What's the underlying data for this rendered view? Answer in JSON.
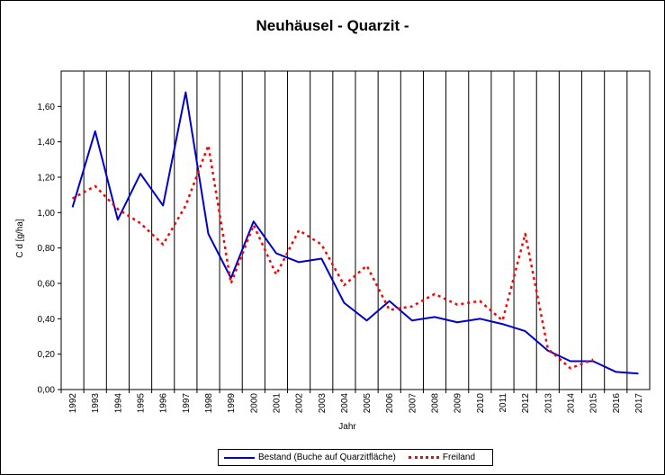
{
  "chart_data": {
    "type": "line",
    "title": "Neuhäusel - Quarzit -",
    "xlabel": "Jahr",
    "ylabel": "C d [g/ha]",
    "x": [
      "1992",
      "1993",
      "1994",
      "1995",
      "1996",
      "1997",
      "1998",
      "1999",
      "2000",
      "2001",
      "2002",
      "2003",
      "2004",
      "2005",
      "2006",
      "2007",
      "2008",
      "2009",
      "2010",
      "2011",
      "2012",
      "2013",
      "2014",
      "2015",
      "2016",
      "2017"
    ],
    "ylim": [
      0,
      1.8
    ],
    "yticks": [
      "0,00",
      "0,20",
      "0,40",
      "0,60",
      "0,80",
      "1,00",
      "1,20",
      "1,40",
      "1,60"
    ],
    "grid": "vertical",
    "legend_position": "bottom",
    "series": [
      {
        "name": "Bestand (Buche auf Quarzitfläche)",
        "color": "#0000cc",
        "style": "solid",
        "values": [
          1.03,
          1.46,
          0.96,
          1.22,
          1.04,
          1.68,
          0.88,
          0.63,
          0.95,
          0.77,
          0.72,
          0.74,
          0.49,
          0.39,
          0.5,
          0.39,
          0.41,
          0.38,
          0.4,
          0.37,
          0.33,
          0.22,
          0.16,
          0.16,
          0.1,
          0.09
        ]
      },
      {
        "name": "Freiland",
        "color": "#ff0000",
        "style": "dotted",
        "values": [
          1.08,
          1.15,
          1.02,
          0.94,
          0.82,
          1.04,
          1.38,
          0.6,
          0.93,
          0.65,
          0.9,
          0.82,
          0.59,
          0.7,
          0.45,
          0.47,
          0.54,
          0.48,
          0.5,
          0.39,
          0.88,
          0.23,
          0.12,
          0.17,
          null,
          null
        ]
      }
    ]
  }
}
